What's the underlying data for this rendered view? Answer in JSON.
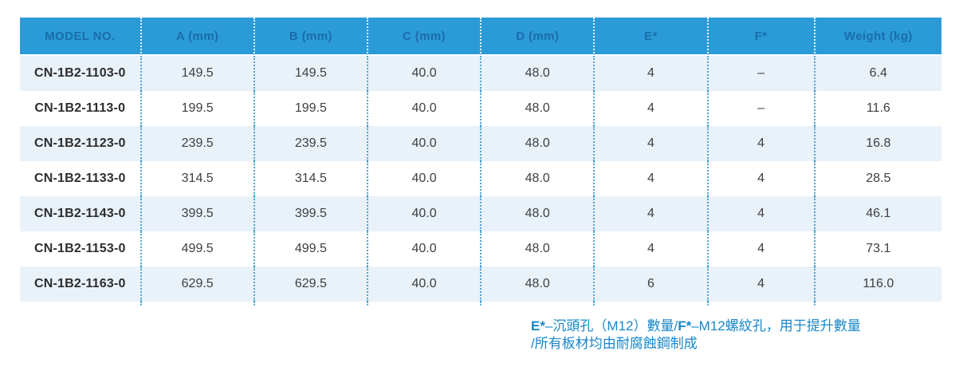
{
  "table": {
    "columns": [
      "MODEL NO.",
      "A (mm)",
      "B (mm)",
      "C (mm)",
      "D (mm)",
      "E*",
      "F*",
      "Weight (kg)"
    ],
    "rows": [
      [
        "CN-1B2-1103-0",
        "149.5",
        "149.5",
        "40.0",
        "48.0",
        "4",
        "–",
        "6.4"
      ],
      [
        "CN-1B2-1113-0",
        "199.5",
        "199.5",
        "40.0",
        "48.0",
        "4",
        "–",
        "11.6"
      ],
      [
        "CN-1B2-1123-0",
        "239.5",
        "239.5",
        "40.0",
        "48.0",
        "4",
        "4",
        "16.8"
      ],
      [
        "CN-1B2-1133-0",
        "314.5",
        "314.5",
        "40.0",
        "48.0",
        "4",
        "4",
        "28.5"
      ],
      [
        "CN-1B2-1143-0",
        "399.5",
        "399.5",
        "40.0",
        "48.0",
        "4",
        "4",
        "46.1"
      ],
      [
        "CN-1B2-1153-0",
        "499.5",
        "499.5",
        "40.0",
        "48.0",
        "4",
        "4",
        "73.1"
      ],
      [
        "CN-1B2-1163-0",
        "629.5",
        "629.5",
        "40.0",
        "48.0",
        "6",
        "4",
        "116.0"
      ]
    ]
  },
  "footnote": {
    "e_label": "E*",
    "e_text": "–沉頭孔（M12）數量/",
    "f_label": "F*",
    "f_text": "–M12螺紋孔，用于提升數量",
    "line2": "/所有板材均由耐腐蝕鋼制成"
  },
  "colors": {
    "header_bg": "#2b9bd7",
    "header_text": "#1a6cab",
    "row_alt_bg": "#e9f1f9",
    "row_bg": "#ffffff",
    "body_text": "#404040",
    "model_text": "#2d2d2d",
    "divider_body": "#4fa6d1",
    "divider_header": "#ffffff",
    "footnote_text": "#1987c8"
  }
}
